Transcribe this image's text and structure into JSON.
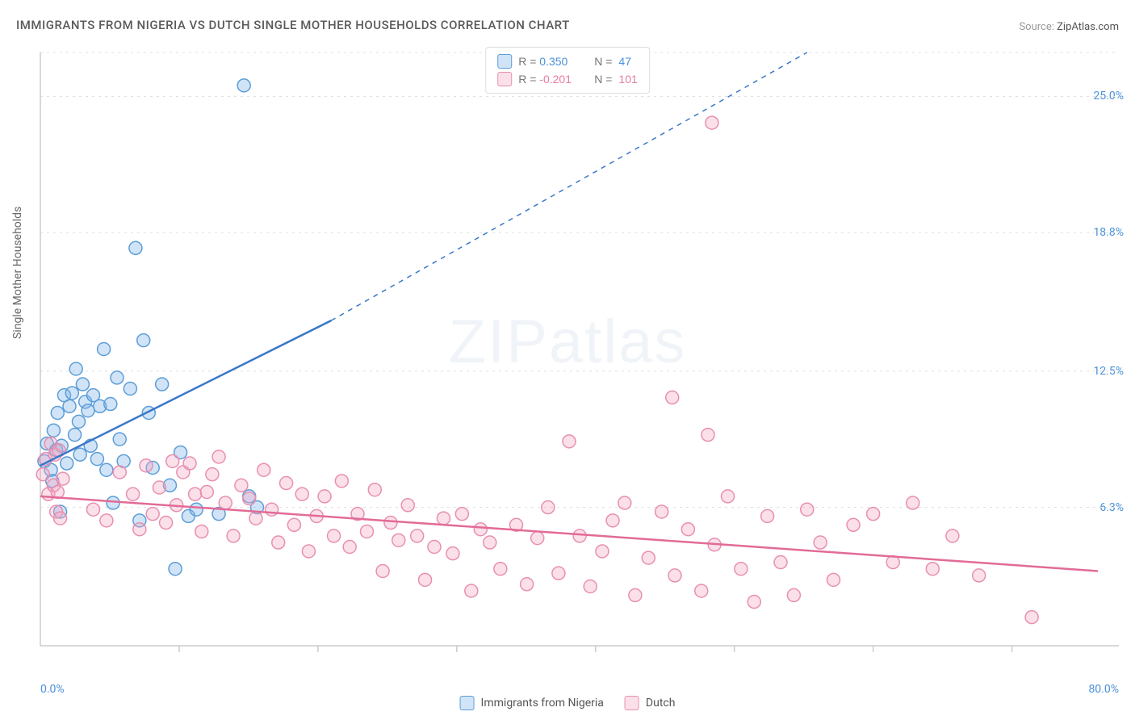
{
  "title": "IMMIGRANTS FROM NIGERIA VS DUTCH SINGLE MOTHER HOUSEHOLDS CORRELATION CHART",
  "source_label": "Source:",
  "source_value": "ZipAtlas.com",
  "ylabel": "Single Mother Households",
  "watermark_zip": "ZIP",
  "watermark_atlas": "atlas",
  "chart": {
    "type": "scatter",
    "xlim": [
      0,
      80
    ],
    "ylim": [
      0,
      27
    ],
    "y_ticks": [
      {
        "v": 6.3,
        "label": "6.3%"
      },
      {
        "v": 12.5,
        "label": "12.5%"
      },
      {
        "v": 18.8,
        "label": "18.8%"
      },
      {
        "v": 25.0,
        "label": "25.0%"
      }
    ],
    "x_minor_ticks": [
      10.5,
      21,
      31.5,
      42,
      52.5,
      63,
      73.5
    ],
    "x_min_label": "0.0%",
    "x_max_label": "80.0%",
    "grid_color": "#e0e0e0",
    "axis_color": "#cccccc",
    "background_color": "#ffffff",
    "series": [
      {
        "name": "Immigrants from Nigeria",
        "marker_color_fill": "rgba(122,179,232,0.35)",
        "marker_color_stroke": "#5c9dd7",
        "marker_radius": 8,
        "trend_color": "#3a78c9",
        "trend_width": 2.5,
        "r_value": "0.350",
        "n_value": "47",
        "trend_start": {
          "x": 0,
          "y": 8.2
        },
        "trend_solid_end": {
          "x": 22,
          "y": 14.8
        },
        "trend_dash_end": {
          "x": 58,
          "y": 27
        },
        "points": [
          {
            "x": 0.3,
            "y": 8.4
          },
          {
            "x": 0.5,
            "y": 9.2
          },
          {
            "x": 0.8,
            "y": 8.0
          },
          {
            "x": 0.9,
            "y": 7.5
          },
          {
            "x": 1.0,
            "y": 9.8
          },
          {
            "x": 1.2,
            "y": 8.9
          },
          {
            "x": 1.3,
            "y": 10.6
          },
          {
            "x": 1.5,
            "y": 6.1
          },
          {
            "x": 1.6,
            "y": 9.1
          },
          {
            "x": 1.8,
            "y": 11.4
          },
          {
            "x": 2.0,
            "y": 8.3
          },
          {
            "x": 2.2,
            "y": 10.9
          },
          {
            "x": 2.4,
            "y": 11.5
          },
          {
            "x": 2.6,
            "y": 9.6
          },
          {
            "x": 2.7,
            "y": 12.6
          },
          {
            "x": 2.9,
            "y": 10.2
          },
          {
            "x": 3.0,
            "y": 8.7
          },
          {
            "x": 3.2,
            "y": 11.9
          },
          {
            "x": 3.4,
            "y": 11.1
          },
          {
            "x": 3.6,
            "y": 10.7
          },
          {
            "x": 3.8,
            "y": 9.1
          },
          {
            "x": 4.0,
            "y": 11.4
          },
          {
            "x": 4.3,
            "y": 8.5
          },
          {
            "x": 4.5,
            "y": 10.9
          },
          {
            "x": 4.8,
            "y": 13.5
          },
          {
            "x": 5.0,
            "y": 8.0
          },
          {
            "x": 5.3,
            "y": 11.0
          },
          {
            "x": 5.5,
            "y": 6.5
          },
          {
            "x": 5.8,
            "y": 12.2
          },
          {
            "x": 6.0,
            "y": 9.4
          },
          {
            "x": 6.3,
            "y": 8.4
          },
          {
            "x": 6.8,
            "y": 11.7
          },
          {
            "x": 7.2,
            "y": 18.1
          },
          {
            "x": 7.5,
            "y": 5.7
          },
          {
            "x": 7.8,
            "y": 13.9
          },
          {
            "x": 8.2,
            "y": 10.6
          },
          {
            "x": 8.5,
            "y": 8.1
          },
          {
            "x": 9.2,
            "y": 11.9
          },
          {
            "x": 9.8,
            "y": 7.3
          },
          {
            "x": 10.2,
            "y": 3.5
          },
          {
            "x": 10.6,
            "y": 8.8
          },
          {
            "x": 11.2,
            "y": 5.9
          },
          {
            "x": 11.8,
            "y": 6.2
          },
          {
            "x": 13.5,
            "y": 6.0
          },
          {
            "x": 15.4,
            "y": 25.5
          },
          {
            "x": 15.8,
            "y": 6.8
          },
          {
            "x": 16.4,
            "y": 6.3
          }
        ]
      },
      {
        "name": "Dutch",
        "marker_color_fill": "rgba(244,166,195,0.35)",
        "marker_color_stroke": "#e88fb0",
        "marker_radius": 8,
        "trend_color": "#e26b97",
        "trend_width": 2.5,
        "r_value": "-0.201",
        "n_value": "101",
        "trend_start": {
          "x": 0,
          "y": 6.8
        },
        "trend_solid_end": {
          "x": 80,
          "y": 3.4
        },
        "points": [
          {
            "x": 0.2,
            "y": 7.8
          },
          {
            "x": 0.4,
            "y": 8.5
          },
          {
            "x": 0.6,
            "y": 6.9
          },
          {
            "x": 0.8,
            "y": 9.2
          },
          {
            "x": 1.0,
            "y": 7.3
          },
          {
            "x": 1.1,
            "y": 8.7
          },
          {
            "x": 1.2,
            "y": 6.1
          },
          {
            "x": 1.3,
            "y": 7.0
          },
          {
            "x": 1.4,
            "y": 8.9
          },
          {
            "x": 1.5,
            "y": 5.8
          },
          {
            "x": 1.7,
            "y": 7.6
          },
          {
            "x": 4.0,
            "y": 6.2
          },
          {
            "x": 5.0,
            "y": 5.7
          },
          {
            "x": 6.0,
            "y": 7.9
          },
          {
            "x": 7.0,
            "y": 6.9
          },
          {
            "x": 7.5,
            "y": 5.3
          },
          {
            "x": 8.0,
            "y": 8.2
          },
          {
            "x": 8.5,
            "y": 6.0
          },
          {
            "x": 9.0,
            "y": 7.2
          },
          {
            "x": 9.5,
            "y": 5.6
          },
          {
            "x": 10.0,
            "y": 8.4
          },
          {
            "x": 10.3,
            "y": 6.4
          },
          {
            "x": 10.8,
            "y": 7.9
          },
          {
            "x": 11.3,
            "y": 8.3
          },
          {
            "x": 11.7,
            "y": 6.9
          },
          {
            "x": 12.2,
            "y": 5.2
          },
          {
            "x": 12.6,
            "y": 7.0
          },
          {
            "x": 13.0,
            "y": 7.8
          },
          {
            "x": 13.5,
            "y": 8.6
          },
          {
            "x": 14.0,
            "y": 6.5
          },
          {
            "x": 14.6,
            "y": 5.0
          },
          {
            "x": 15.2,
            "y": 7.3
          },
          {
            "x": 15.8,
            "y": 6.7
          },
          {
            "x": 16.3,
            "y": 5.8
          },
          {
            "x": 16.9,
            "y": 8.0
          },
          {
            "x": 17.5,
            "y": 6.2
          },
          {
            "x": 18.0,
            "y": 4.7
          },
          {
            "x": 18.6,
            "y": 7.4
          },
          {
            "x": 19.2,
            "y": 5.5
          },
          {
            "x": 19.8,
            "y": 6.9
          },
          {
            "x": 20.3,
            "y": 4.3
          },
          {
            "x": 20.9,
            "y": 5.9
          },
          {
            "x": 21.5,
            "y": 6.8
          },
          {
            "x": 22.2,
            "y": 5.0
          },
          {
            "x": 22.8,
            "y": 7.5
          },
          {
            "x": 23.4,
            "y": 4.5
          },
          {
            "x": 24.0,
            "y": 6.0
          },
          {
            "x": 24.7,
            "y": 5.2
          },
          {
            "x": 25.3,
            "y": 7.1
          },
          {
            "x": 25.9,
            "y": 3.4
          },
          {
            "x": 26.5,
            "y": 5.6
          },
          {
            "x": 27.1,
            "y": 4.8
          },
          {
            "x": 27.8,
            "y": 6.4
          },
          {
            "x": 28.5,
            "y": 5.0
          },
          {
            "x": 29.1,
            "y": 3.0
          },
          {
            "x": 29.8,
            "y": 4.5
          },
          {
            "x": 30.5,
            "y": 5.8
          },
          {
            "x": 31.2,
            "y": 4.2
          },
          {
            "x": 31.9,
            "y": 6.0
          },
          {
            "x": 32.6,
            "y": 2.5
          },
          {
            "x": 33.3,
            "y": 5.3
          },
          {
            "x": 34.0,
            "y": 4.7
          },
          {
            "x": 34.8,
            "y": 3.5
          },
          {
            "x": 36.0,
            "y": 5.5
          },
          {
            "x": 36.8,
            "y": 2.8
          },
          {
            "x": 37.6,
            "y": 4.9
          },
          {
            "x": 38.4,
            "y": 6.3
          },
          {
            "x": 39.2,
            "y": 3.3
          },
          {
            "x": 40.0,
            "y": 9.3
          },
          {
            "x": 40.8,
            "y": 5.0
          },
          {
            "x": 41.6,
            "y": 2.7
          },
          {
            "x": 42.5,
            "y": 4.3
          },
          {
            "x": 43.3,
            "y": 5.7
          },
          {
            "x": 44.2,
            "y": 6.5
          },
          {
            "x": 45.0,
            "y": 2.3
          },
          {
            "x": 46.0,
            "y": 4.0
          },
          {
            "x": 47.0,
            "y": 6.1
          },
          {
            "x": 47.8,
            "y": 11.3
          },
          {
            "x": 48.0,
            "y": 3.2
          },
          {
            "x": 49.0,
            "y": 5.3
          },
          {
            "x": 50.0,
            "y": 2.5
          },
          {
            "x": 50.5,
            "y": 9.6
          },
          {
            "x": 50.8,
            "y": 23.8
          },
          {
            "x": 51.0,
            "y": 4.6
          },
          {
            "x": 52.0,
            "y": 6.8
          },
          {
            "x": 53.0,
            "y": 3.5
          },
          {
            "x": 54.0,
            "y": 2.0
          },
          {
            "x": 55.0,
            "y": 5.9
          },
          {
            "x": 56.0,
            "y": 3.8
          },
          {
            "x": 57.0,
            "y": 2.3
          },
          {
            "x": 58.0,
            "y": 6.2
          },
          {
            "x": 59.0,
            "y": 4.7
          },
          {
            "x": 60.0,
            "y": 3.0
          },
          {
            "x": 61.5,
            "y": 5.5
          },
          {
            "x": 63.0,
            "y": 6.0
          },
          {
            "x": 64.5,
            "y": 3.8
          },
          {
            "x": 66.0,
            "y": 6.5
          },
          {
            "x": 67.5,
            "y": 3.5
          },
          {
            "x": 69.0,
            "y": 5.0
          },
          {
            "x": 71.0,
            "y": 3.2
          },
          {
            "x": 75.0,
            "y": 1.3
          }
        ]
      }
    ],
    "legend_labels": {
      "r": "R =",
      "n": "N ="
    }
  }
}
